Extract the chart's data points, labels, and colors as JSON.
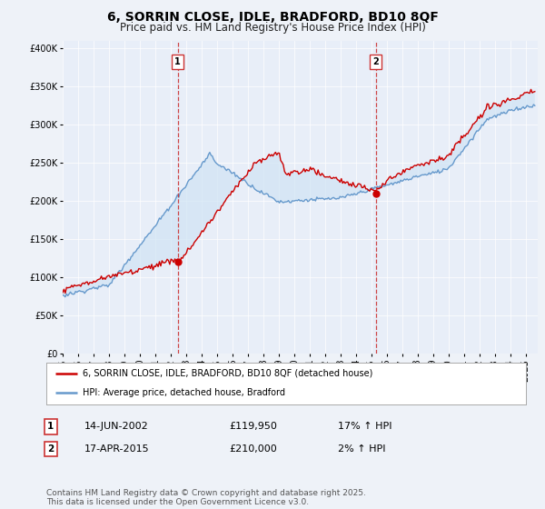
{
  "title": "6, SORRIN CLOSE, IDLE, BRADFORD, BD10 8QF",
  "subtitle": "Price paid vs. HM Land Registry's House Price Index (HPI)",
  "title_fontsize": 10,
  "subtitle_fontsize": 8.5,
  "background_color": "#eef2f8",
  "plot_bg_color": "#e8eef8",
  "ylabel_ticks": [
    "£0",
    "£50K",
    "£100K",
    "£150K",
    "£200K",
    "£250K",
    "£300K",
    "£350K",
    "£400K"
  ],
  "ytick_values": [
    0,
    50000,
    100000,
    150000,
    200000,
    250000,
    300000,
    350000,
    400000
  ],
  "ylim": [
    0,
    410000
  ],
  "xlim_start": 1995.0,
  "xlim_end": 2025.8,
  "xtick_years": [
    1995,
    1996,
    1997,
    1998,
    1999,
    2000,
    2001,
    2002,
    2003,
    2004,
    2005,
    2006,
    2007,
    2008,
    2009,
    2010,
    2011,
    2012,
    2013,
    2014,
    2015,
    2016,
    2017,
    2018,
    2019,
    2020,
    2021,
    2022,
    2023,
    2024,
    2025
  ],
  "red_line_color": "#cc0000",
  "blue_line_color": "#6699cc",
  "blue_fill_color": "#d0e4f4",
  "marker1_x": 2002.45,
  "marker1_y": 119950,
  "marker2_x": 2015.29,
  "marker2_y": 210000,
  "marker_dashed_color": "#cc3333",
  "legend_label_red": "6, SORRIN CLOSE, IDLE, BRADFORD, BD10 8QF (detached house)",
  "legend_label_blue": "HPI: Average price, detached house, Bradford",
  "table_row1": [
    "1",
    "14-JUN-2002",
    "£119,950",
    "17% ↑ HPI"
  ],
  "table_row2": [
    "2",
    "17-APR-2015",
    "£210,000",
    "2% ↑ HPI"
  ],
  "footer": "Contains HM Land Registry data © Crown copyright and database right 2025.\nThis data is licensed under the Open Government Licence v3.0.",
  "footer_fontsize": 6.5,
  "grid_color": "#ffffff",
  "tick_fontsize": 7,
  "legend_fontsize": 7
}
